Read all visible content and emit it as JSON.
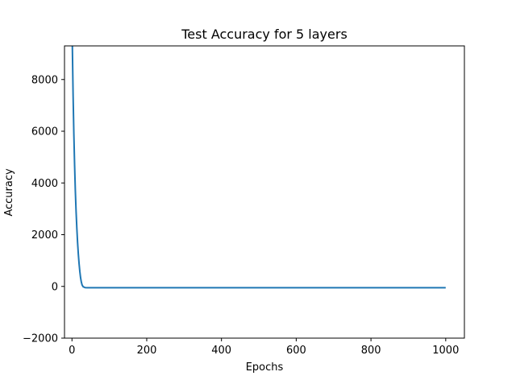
{
  "chart_data": {
    "type": "line",
    "title": "Test Accuracy for 5 layers",
    "xlabel": "Epochs",
    "ylabel": "Accuracy",
    "xlim": [
      -20,
      1050
    ],
    "ylim": [
      -2000,
      9300
    ],
    "xticks": [
      0,
      200,
      400,
      600,
      800,
      1000
    ],
    "yticks": [
      -2000,
      0,
      2000,
      4000,
      6000,
      8000
    ],
    "grid": false,
    "legend": "none",
    "series": [
      {
        "color": "#1f77b4",
        "x": [
          1,
          3,
          5,
          7,
          9,
          11,
          13,
          15,
          17,
          19,
          21,
          23,
          25,
          27,
          30,
          35,
          40,
          50,
          100,
          200,
          400,
          600,
          800,
          1000
        ],
        "y": [
          9300,
          7400,
          5900,
          4700,
          3700,
          2900,
          2250,
          1700,
          1250,
          880,
          580,
          340,
          170,
          60,
          -15,
          -45,
          -50,
          -50,
          -50,
          -50,
          -50,
          -50,
          -50,
          -50
        ]
      }
    ]
  }
}
